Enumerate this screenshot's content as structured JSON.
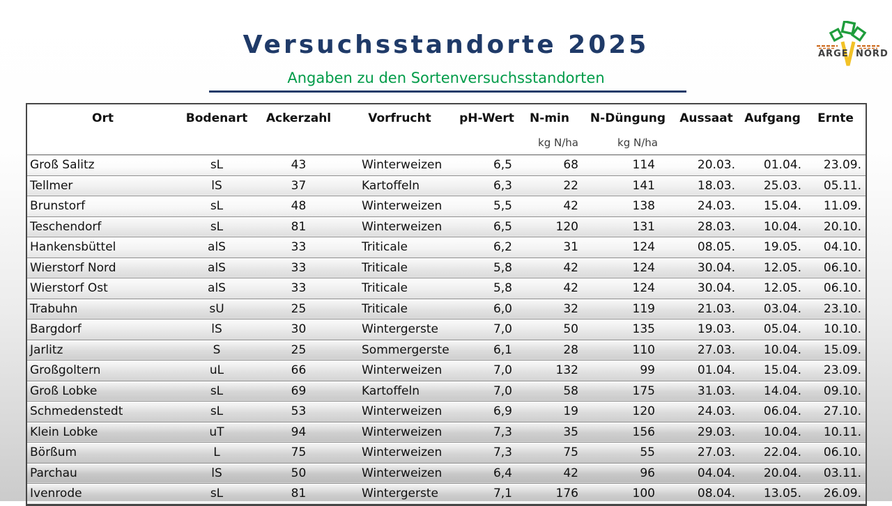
{
  "title": "Versuchsstandorte 2025",
  "subtitle": "Angaben zu den Sortenversuchsstandorten",
  "colors": {
    "title_navy": "#1f3a68",
    "subtitle_green": "#009b48",
    "logo_leaf_green": "#1f9d3c",
    "logo_carrot_yellow": "#f2c227",
    "logo_dash_orange": "#cd6a1d"
  },
  "logo": {
    "word1": "ARGE",
    "word2": "NORD"
  },
  "table": {
    "headers": [
      "Ort",
      "Bodenart",
      "Ackerzahl",
      "Vorfrucht",
      "pH-Wert",
      "N-min",
      "N-Düngung",
      "Aussaat",
      "Aufgang",
      "Ernte"
    ],
    "subheaders": {
      "n_min": "kg N/ha",
      "n_duengung": "kg N/ha"
    },
    "rows": [
      [
        "Groß Salitz",
        "sL",
        "43",
        "Winterweizen",
        "6,5",
        "68",
        "114",
        "20.03.",
        "01.04.",
        "23.09."
      ],
      [
        "Tellmer",
        "lS",
        "37",
        "Kartoffeln",
        "6,3",
        "22",
        "141",
        "18.03.",
        "25.03.",
        "05.11."
      ],
      [
        "Brunstorf",
        "sL",
        "48",
        "Winterweizen",
        "5,5",
        "42",
        "138",
        "24.03.",
        "15.04.",
        "11.09."
      ],
      [
        "Teschendorf",
        "sL",
        "81",
        "Winterweizen",
        "6,5",
        "120",
        "131",
        "28.03.",
        "10.04.",
        "20.10."
      ],
      [
        "Hankensbüttel",
        "alS",
        "33",
        "Triticale",
        "6,2",
        "31",
        "124",
        "08.05.",
        "19.05.",
        "04.10."
      ],
      [
        "Wierstorf Nord",
        "alS",
        "33",
        "Triticale",
        "5,8",
        "42",
        "124",
        "30.04.",
        "12.05.",
        "06.10."
      ],
      [
        "Wierstorf Ost",
        "alS",
        "33",
        "Triticale",
        "5,8",
        "42",
        "124",
        "30.04.",
        "12.05.",
        "06.10."
      ],
      [
        "Trabuhn",
        "sU",
        "25",
        "Triticale",
        "6,0",
        "32",
        "119",
        "21.03.",
        "03.04.",
        "23.10."
      ],
      [
        "Bargdorf",
        "lS",
        "30",
        "Wintergerste",
        "7,0",
        "50",
        "135",
        "19.03.",
        "05.04.",
        "10.10."
      ],
      [
        "Jarlitz",
        "S",
        "25",
        "Sommergerste",
        "6,1",
        "28",
        "110",
        "27.03.",
        "10.04.",
        "15.09."
      ],
      [
        "Großgoltern",
        "uL",
        "66",
        "Winterweizen",
        "7,0",
        "132",
        "99",
        "01.04.",
        "15.04.",
        "23.09."
      ],
      [
        "Groß Lobke",
        "sL",
        "69",
        "Kartoffeln",
        "7,0",
        "58",
        "175",
        "31.03.",
        "14.04.",
        "09.10."
      ],
      [
        "Schmedenstedt",
        "sL",
        "53",
        "Winterweizen",
        "6,9",
        "19",
        "120",
        "24.03.",
        "06.04.",
        "27.10."
      ],
      [
        "Klein Lobke",
        "uT",
        "94",
        "Winterweizen",
        "7,3",
        "35",
        "156",
        "29.03.",
        "10.04.",
        "10.11."
      ],
      [
        "Börßum",
        "L",
        "75",
        "Winterweizen",
        "7,3",
        "75",
        "55",
        "27.03.",
        "22.04.",
        "06.10."
      ],
      [
        "Parchau",
        "lS",
        "50",
        "Winterweizen",
        "6,4",
        "42",
        "96",
        "04.04.",
        "20.04.",
        "03.11."
      ],
      [
        "Ivenrode",
        "sL",
        "81",
        "Wintergerste",
        "7,1",
        "176",
        "100",
        "08.04.",
        "13.05.",
        "26.09."
      ]
    ]
  }
}
